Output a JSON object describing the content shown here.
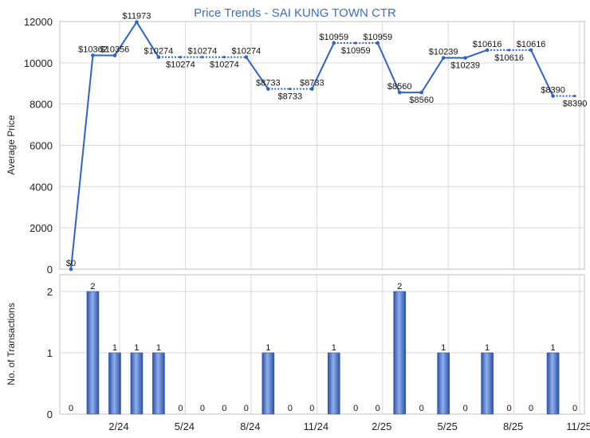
{
  "chart_data": [
    {
      "type": "line",
      "title": "Price Trends - SAI KUNG TOWN CTR",
      "ylabel": "Average Price",
      "ylim": [
        0,
        12000
      ],
      "yticks": [
        0,
        2000,
        4000,
        6000,
        8000,
        10000,
        12000
      ],
      "x_tick_labels": [
        "2/24",
        "5/24",
        "8/24",
        "11/24",
        "2/25",
        "5/25",
        "8/25",
        "11/25"
      ],
      "grid": true,
      "series": [
        {
          "values": [
            0,
            10362,
            10356,
            11973,
            10274,
            10274,
            10274,
            10274,
            10274,
            8733,
            8733,
            8733,
            10959,
            10959,
            10959,
            8560,
            8560,
            10239,
            10239,
            10616,
            10616,
            10616,
            8390,
            8390
          ],
          "labels": [
            "$0",
            "$10362",
            "$10356",
            "$11973",
            "$10274",
            "$10274",
            "$10274",
            "$10274",
            "$10274",
            "$8733",
            "$8733",
            "$8733",
            "$10959",
            "$10959",
            "$10959",
            "$8560",
            "$8560",
            "$10239",
            "$10239",
            "$10616",
            "$10616",
            "$10616",
            "$8390",
            "$8390"
          ],
          "interpolated": [
            false,
            false,
            false,
            false,
            false,
            true,
            true,
            true,
            false,
            false,
            true,
            false,
            false,
            true,
            false,
            false,
            false,
            false,
            false,
            false,
            true,
            false,
            false,
            true
          ],
          "color": "#2e62c8"
        }
      ]
    },
    {
      "type": "bar",
      "ylabel": "No. of Transactions",
      "ylim": [
        0,
        2
      ],
      "yticks": [
        0,
        1,
        2
      ],
      "x_tick_labels": [
        "2/24",
        "5/24",
        "8/24",
        "11/24",
        "2/25",
        "5/25",
        "8/25",
        "11/25"
      ],
      "grid": true,
      "series": [
        {
          "values": [
            0,
            2,
            1,
            1,
            1,
            0,
            0,
            0,
            0,
            1,
            0,
            0,
            1,
            0,
            0,
            2,
            0,
            1,
            0,
            1,
            0,
            0,
            1,
            0
          ],
          "color": "#3b62c2"
        }
      ]
    }
  ]
}
